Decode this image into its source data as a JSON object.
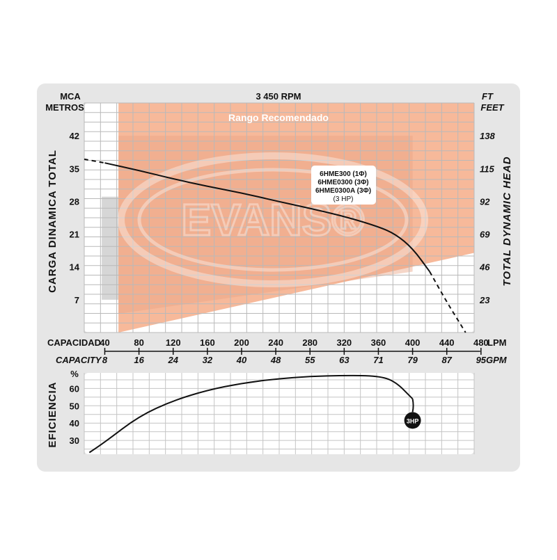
{
  "header": {
    "left_unit_1": "MCA",
    "left_unit_2": "METROS",
    "rpm": "3 450 RPM",
    "right_unit_1": "FT",
    "right_unit_2": "FEET"
  },
  "range_label": "Rango Recomendado",
  "watermark": "EVANS®",
  "colors": {
    "panel": "#e6e6e6",
    "plot_bg": "#ffffff",
    "recommended_range": "#f7b99a",
    "recommended_range_dark": "#e9a585",
    "curve": "#111111",
    "badge": "#111111"
  },
  "chart_data": [
    {
      "type": "line",
      "title": "",
      "xlabel": "CAPACIDAD",
      "xlabel_secondary": "CAPACITY",
      "ylabel": "CARGA DINAMICA TOTAL",
      "ylabel_secondary": "TOTAL DYNAMIC HEAD",
      "x_unit": "LPM",
      "x_unit_secondary": "GPM",
      "y_unit": "MCA METROS",
      "y_unit_secondary": "FT FEET",
      "xlim": [
        16,
        472
      ],
      "ylim": [
        0,
        49
      ],
      "x_ticks": [
        40,
        80,
        120,
        160,
        200,
        240,
        280,
        320,
        360,
        400,
        440,
        480
      ],
      "x_ticks_secondary": [
        8,
        16,
        24,
        32,
        40,
        48,
        55,
        63,
        71,
        79,
        87,
        95
      ],
      "y_ticks": [
        7,
        14,
        21,
        28,
        35,
        42
      ],
      "y_ticks_secondary": [
        23,
        46,
        69,
        92,
        115,
        138
      ],
      "grid": true,
      "recommended_range": {
        "x": [
          56,
          472
        ],
        "y_lower_at_start": 0,
        "y_lower_at_end": 17
      },
      "series": [
        {
          "name": "6HME300 (1Φ) 6HME0300 (3Φ) 6HME0300A (3Φ) (3 HP)",
          "label_lines": [
            "6HME300 (1Φ)",
            "6HME0300 (3Φ)",
            "6HME0300A (3Φ)",
            "(3 HP)"
          ],
          "x": [
            16,
            40,
            80,
            120,
            160,
            200,
            240,
            280,
            320,
            360,
            380,
            400,
            420,
            440,
            462
          ],
          "y": [
            37.0,
            36.2,
            34.6,
            32.8,
            31.2,
            29.8,
            28.1,
            26.5,
            24.8,
            22.6,
            21.0,
            18.0,
            13.0,
            6.5,
            0
          ],
          "dashed_x_below": 40,
          "dashed_x_above": 420
        }
      ]
    },
    {
      "type": "line",
      "title": "",
      "ylabel": "EFICIENCIA",
      "y_unit": "%",
      "xlim": [
        16,
        472
      ],
      "ylim": [
        22,
        69
      ],
      "y_ticks": [
        30,
        40,
        50,
        60
      ],
      "grid": true,
      "series": [
        {
          "name": "3HP",
          "x": [
            22,
            40,
            80,
            120,
            160,
            200,
            240,
            280,
            320,
            360,
            380,
            400
          ],
          "y": [
            23,
            29,
            44,
            53,
            59,
            63,
            65.5,
            67,
            67.5,
            67.3,
            64,
            54
          ]
        }
      ]
    }
  ]
}
